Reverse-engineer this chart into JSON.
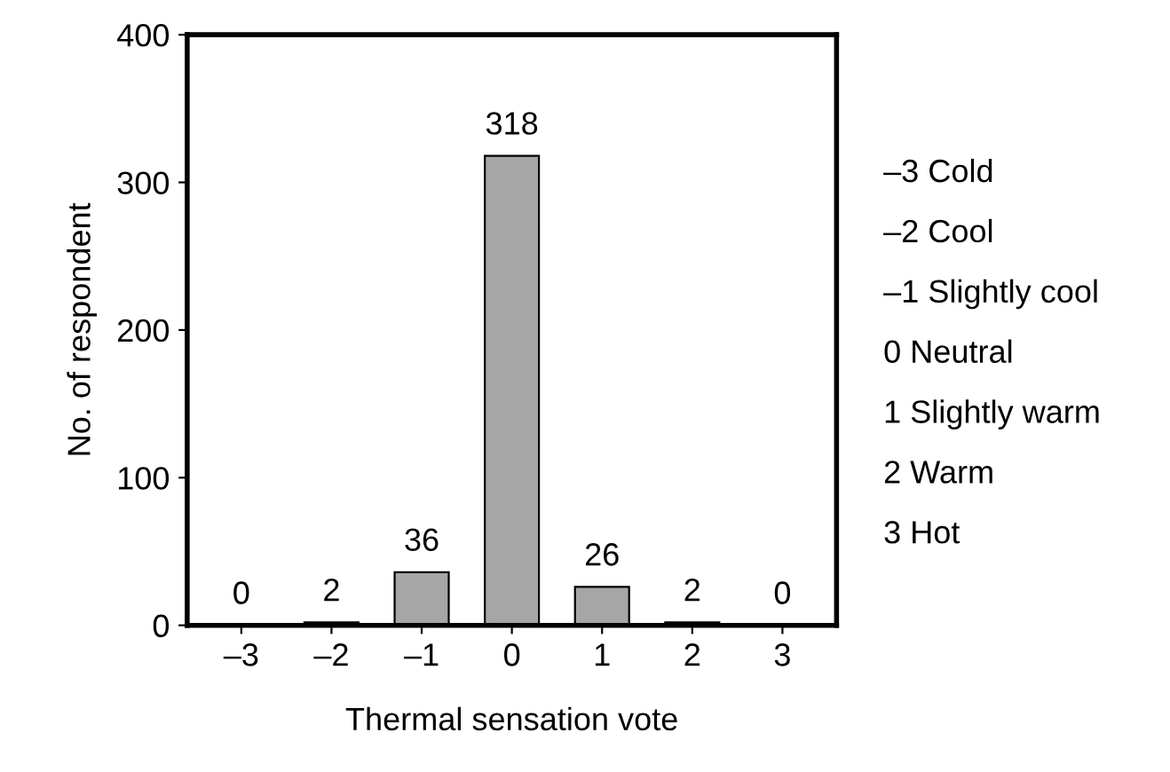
{
  "chart_data": {
    "type": "bar",
    "xlabel": "Thermal sensation vote",
    "ylabel": "No. of respondent",
    "categories": [
      "–3",
      "–2",
      "–1",
      "0",
      "1",
      "2",
      "3"
    ],
    "values": [
      0,
      2,
      36,
      318,
      26,
      2,
      0
    ],
    "color": "#a6a6a6",
    "data_labels": true,
    "ylim": [
      0,
      400
    ],
    "yticks": [
      0,
      100,
      200,
      300,
      400
    ],
    "grid": false,
    "annotations": [
      "–3 Cold",
      "–2 Cool",
      "–1 Slightly cool",
      "0 Neutral",
      "1 Slightly warm",
      "2 Warm",
      "3 Hot"
    ]
  }
}
